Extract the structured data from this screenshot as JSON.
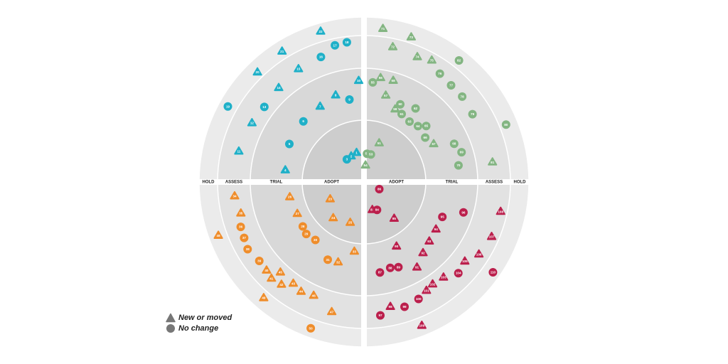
{
  "radar": {
    "ring_labels": [
      "ADOPT",
      "TRIAL",
      "ASSESS",
      "HOLD"
    ],
    "quadrant_colors": {
      "top-left": "#1fb0c8",
      "top-right": "#83b582",
      "bottom-left": "#ef8d2b",
      "bottom-right": "#bb1f4c"
    },
    "blips": [
      {
        "n": "1",
        "q": "tl",
        "r": "adopt",
        "shape": "triangle",
        "a": 76,
        "d": 0.45
      },
      {
        "n": "2",
        "q": "tl",
        "r": "adopt",
        "shape": "triangle",
        "a": 64,
        "d": 0.42
      },
      {
        "n": "3",
        "q": "tl",
        "r": "adopt",
        "shape": "circle",
        "a": 53,
        "d": 0.4
      },
      {
        "n": "4",
        "q": "tl",
        "r": "trial",
        "shape": "triangle",
        "a": 9,
        "d": 0.3
      },
      {
        "n": "5",
        "q": "tl",
        "r": "trial",
        "shape": "circle",
        "a": 27,
        "d": 0.4
      },
      {
        "n": "6",
        "q": "tl",
        "r": "trial",
        "shape": "circle",
        "a": 45,
        "d": 0.45
      },
      {
        "n": "7",
        "q": "tl",
        "r": "trial",
        "shape": "triangle",
        "a": 60,
        "d": 0.5
      },
      {
        "n": "8",
        "q": "tl",
        "r": "trial",
        "shape": "triangle",
        "a": 72,
        "d": 0.6
      },
      {
        "n": "9",
        "q": "tl",
        "r": "trial",
        "shape": "circle",
        "a": 80,
        "d": 0.4
      },
      {
        "n": "10",
        "q": "tl",
        "r": "trial",
        "shape": "triangle",
        "a": 87,
        "d": 0.85
      },
      {
        "n": "11",
        "q": "tl",
        "r": "assess",
        "shape": "triangle",
        "a": 14,
        "d": 0.45
      },
      {
        "n": "12",
        "q": "tl",
        "r": "assess",
        "shape": "triangle",
        "a": 28,
        "d": 0.35
      },
      {
        "n": "13",
        "q": "tl",
        "r": "assess",
        "shape": "circle",
        "a": 37,
        "d": 0.25
      },
      {
        "n": "14",
        "q": "tl",
        "r": "assess",
        "shape": "triangle",
        "a": 48,
        "d": 0.38
      },
      {
        "n": "15",
        "q": "tl",
        "r": "assess",
        "shape": "triangle",
        "a": 60,
        "d": 0.55
      },
      {
        "n": "16",
        "q": "tl",
        "r": "assess",
        "shape": "circle",
        "a": 71,
        "d": 0.6
      },
      {
        "n": "17",
        "q": "tl",
        "r": "assess",
        "shape": "circle",
        "a": 78,
        "d": 0.95
      },
      {
        "n": "18",
        "q": "tl",
        "r": "assess",
        "shape": "circle",
        "a": 83,
        "d": 1.0
      },
      {
        "n": "19",
        "q": "tl",
        "r": "hold",
        "shape": "circle",
        "a": 29,
        "d": 0.5
      },
      {
        "n": "20",
        "q": "tl",
        "r": "hold",
        "shape": "triangle",
        "a": 46,
        "d": 0.18
      },
      {
        "n": "21",
        "q": "tl",
        "r": "hold",
        "shape": "triangle",
        "a": 58,
        "d": 0.35
      },
      {
        "n": "22",
        "q": "tl",
        "r": "hold",
        "shape": "triangle",
        "a": 74,
        "d": 0.72
      },
      {
        "n": "23",
        "q": "bl",
        "r": "adopt",
        "shape": "triangle",
        "a": 26,
        "d": 0.6
      },
      {
        "n": "24",
        "q": "bl",
        "r": "adopt",
        "shape": "triangle",
        "a": 49,
        "d": 0.8
      },
      {
        "n": "25",
        "q": "bl",
        "r": "adopt",
        "shape": "triangle",
        "a": 71,
        "d": 0.7
      },
      {
        "n": "26",
        "q": "bl",
        "r": "trial",
        "shape": "triangle",
        "a": 11,
        "d": 0.2
      },
      {
        "n": "27",
        "q": "bl",
        "r": "trial",
        "shape": "triangle",
        "a": 25,
        "d": 0.15
      },
      {
        "n": "28",
        "q": "bl",
        "r": "trial",
        "shape": "circle",
        "a": 36,
        "d": 0.2
      },
      {
        "n": "29",
        "q": "bl",
        "r": "trial",
        "shape": "circle",
        "a": 42,
        "d": 0.25
      },
      {
        "n": "30",
        "q": "bl",
        "r": "trial",
        "shape": "circle",
        "a": 50,
        "d": 0.2
      },
      {
        "n": "31",
        "q": "bl",
        "r": "trial",
        "shape": "circle",
        "a": 65,
        "d": 0.45
      },
      {
        "n": "32",
        "q": "bl",
        "r": "trial",
        "shape": "triangle",
        "a": 72,
        "d": 0.4
      },
      {
        "n": "33",
        "q": "bl",
        "r": "trial",
        "shape": "triangle",
        "a": 82,
        "d": 0.05
      },
      {
        "n": "34",
        "q": "bl",
        "r": "assess",
        "shape": "triangle",
        "a": 6,
        "d": 0.5
      },
      {
        "n": "35",
        "q": "bl",
        "r": "assess",
        "shape": "triangle",
        "a": 14,
        "d": 0.35
      },
      {
        "n": "36",
        "q": "bl",
        "r": "assess",
        "shape": "circle",
        "a": 20,
        "d": 0.55
      },
      {
        "n": "37",
        "q": "bl",
        "r": "assess",
        "shape": "circle",
        "a": 25,
        "d": 0.6
      },
      {
        "n": "38",
        "q": "bl",
        "r": "assess",
        "shape": "circle",
        "a": 30,
        "d": 0.7
      },
      {
        "n": "39",
        "q": "bl",
        "r": "assess",
        "shape": "circle",
        "a": 37,
        "d": 0.55
      },
      {
        "n": "40",
        "q": "bl",
        "r": "assess",
        "shape": "triangle",
        "a": 42,
        "d": 0.55
      },
      {
        "n": "41",
        "q": "bl",
        "r": "assess",
        "shape": "triangle",
        "a": 46,
        "d": 0.65
      },
      {
        "n": "42",
        "q": "bl",
        "r": "assess",
        "shape": "triangle",
        "a": 51,
        "d": 0.55
      },
      {
        "n": "43",
        "q": "bl",
        "r": "assess",
        "shape": "triangle",
        "a": 55,
        "d": 0.18
      },
      {
        "n": "44",
        "q": "bl",
        "r": "assess",
        "shape": "triangle",
        "a": 60,
        "d": 0.3
      },
      {
        "n": "45",
        "q": "bl",
        "r": "assess",
        "shape": "triangle",
        "a": 47,
        "d": 0.15
      },
      {
        "n": "46",
        "q": "bl",
        "r": "assess",
        "shape": "triangle",
        "a": 66,
        "d": 0.2
      },
      {
        "n": "47",
        "q": "bl",
        "r": "assess",
        "shape": "triangle",
        "a": 76,
        "d": 0.65
      },
      {
        "n": "48",
        "q": "bl",
        "r": "hold",
        "shape": "triangle",
        "a": 20,
        "d": 0.4
      },
      {
        "n": "49",
        "q": "bl",
        "r": "hold",
        "shape": "triangle",
        "a": 49,
        "d": 0.1
      },
      {
        "n": "50",
        "q": "bl",
        "r": "hold",
        "shape": "circle",
        "a": 70,
        "d": 0.5
      },
      {
        "n": "51",
        "q": "tr",
        "r": "adopt",
        "shape": "triangle",
        "a": 69,
        "d": 0.7
      },
      {
        "n": "52",
        "q": "tr",
        "r": "adopt",
        "shape": "circle",
        "a": 84,
        "d": 0.4
      },
      {
        "n": "53",
        "q": "tr",
        "r": "adopt",
        "shape": "circle",
        "a": 76,
        "d": 0.4
      },
      {
        "n": "54",
        "q": "tr",
        "r": "adopt",
        "shape": "triangle",
        "a": 85,
        "d": 0.16
      },
      {
        "n": "55",
        "q": "tr",
        "r": "trial",
        "shape": "circle",
        "a": 85,
        "d": 0.8
      },
      {
        "n": "56",
        "q": "tr",
        "r": "trial",
        "shape": "triangle",
        "a": 81,
        "d": 0.95
      },
      {
        "n": "57",
        "q": "tr",
        "r": "trial",
        "shape": "triangle",
        "a": 76,
        "d": 0.55
      },
      {
        "n": "58",
        "q": "tr",
        "r": "trial",
        "shape": "triangle",
        "a": 74,
        "d": 0.95
      },
      {
        "n": "59",
        "q": "tr",
        "r": "trial",
        "shape": "triangle",
        "a": 67,
        "d": 0.3
      },
      {
        "n": "60",
        "q": "tr",
        "r": "trial",
        "shape": "circle",
        "a": 65,
        "d": 0.45
      },
      {
        "n": "61",
        "q": "tr",
        "r": "trial",
        "shape": "circle",
        "a": 61,
        "d": 0.25
      },
      {
        "n": "62",
        "q": "tr",
        "r": "trial",
        "shape": "circle",
        "a": 55,
        "d": 0.55
      },
      {
        "n": "63",
        "q": "tr",
        "r": "trial",
        "shape": "circle",
        "a": 53,
        "d": 0.2
      },
      {
        "n": "64",
        "q": "tr",
        "r": "trial",
        "shape": "circle",
        "a": 46,
        "d": 0.25
      },
      {
        "n": "65",
        "q": "tr",
        "r": "trial",
        "shape": "circle",
        "a": 42,
        "d": 0.4
      },
      {
        "n": "66",
        "q": "tr",
        "r": "trial",
        "shape": "circle",
        "a": 36,
        "d": 0.2
      },
      {
        "n": "67",
        "q": "tr",
        "r": "trial",
        "shape": "triangle",
        "a": 29,
        "d": 0.3
      },
      {
        "n": "68",
        "q": "tr",
        "r": "trial",
        "shape": "circle",
        "a": 23,
        "d": 0.75
      },
      {
        "n": "69",
        "q": "tr",
        "r": "trial",
        "shape": "circle",
        "a": 17,
        "d": 0.85
      },
      {
        "n": "70",
        "q": "tr",
        "r": "trial",
        "shape": "circle",
        "a": 10,
        "d": 0.7
      },
      {
        "n": "71",
        "q": "tr",
        "r": "hold",
        "shape": "triangle",
        "a": 83,
        "d": 0.4
      },
      {
        "n": "72",
        "q": "tr",
        "r": "assess",
        "shape": "triangle",
        "a": 78,
        "d": 0.9
      },
      {
        "n": "73",
        "q": "tr",
        "r": "hold",
        "shape": "triangle",
        "a": 72,
        "d": 0.1
      },
      {
        "n": "74",
        "q": "tr",
        "r": "assess",
        "shape": "triangle",
        "a": 67,
        "d": 0.8
      },
      {
        "n": "75",
        "q": "tr",
        "r": "assess",
        "shape": "triangle",
        "a": 61,
        "d": 0.95
      },
      {
        "n": "76",
        "q": "tr",
        "r": "assess",
        "shape": "circle",
        "a": 55,
        "d": 0.6
      },
      {
        "n": "77",
        "q": "tr",
        "r": "assess",
        "shape": "circle",
        "a": 48,
        "d": 0.5
      },
      {
        "n": "78",
        "q": "tr",
        "r": "assess",
        "shape": "circle",
        "a": 41,
        "d": 0.5
      },
      {
        "n": "79",
        "q": "tr",
        "r": "assess",
        "shape": "circle",
        "a": 32,
        "d": 0.4
      },
      {
        "n": "80",
        "q": "tr",
        "r": "hold",
        "shape": "circle",
        "a": 22,
        "d": 0.15
      },
      {
        "n": "81",
        "q": "tr",
        "r": "assess",
        "shape": "triangle",
        "a": 9,
        "d": 0.5
      },
      {
        "n": "82",
        "q": "tr",
        "r": "hold",
        "shape": "circle",
        "a": 52,
        "d": 0.3
      },
      {
        "n": "83",
        "q": "br",
        "r": "adopt",
        "shape": "triangle",
        "a": 73,
        "d": 0.4
      },
      {
        "n": "84",
        "q": "br",
        "r": "adopt",
        "shape": "circle",
        "a": 65,
        "d": 0.45
      },
      {
        "n": "85",
        "q": "br",
        "r": "adopt",
        "shape": "triangle",
        "a": 50,
        "d": 0.8
      },
      {
        "n": "86",
        "q": "br",
        "r": "adopt",
        "shape": "circle",
        "a": 25,
        "d": 0.15
      },
      {
        "n": "87",
        "q": "br",
        "r": "trial",
        "shape": "circle",
        "a": 80,
        "d": 0.6
      },
      {
        "n": "88",
        "q": "br",
        "r": "trial",
        "shape": "circle",
        "a": 73,
        "d": 0.55
      },
      {
        "n": "89",
        "q": "br",
        "r": "trial",
        "shape": "circle",
        "a": 68,
        "d": 0.6
      },
      {
        "n": "90",
        "q": "br",
        "r": "trial",
        "shape": "triangle",
        "a": 63,
        "d": 0.1
      },
      {
        "n": "91",
        "q": "br",
        "r": "trial",
        "shape": "triangle",
        "a": 58,
        "d": 0.8
      },
      {
        "n": "92",
        "q": "br",
        "r": "trial",
        "shape": "triangle",
        "a": 50,
        "d": 0.6
      },
      {
        "n": "93",
        "q": "br",
        "r": "trial",
        "shape": "triangle",
        "a": 42,
        "d": 0.5
      },
      {
        "n": "94",
        "q": "br",
        "r": "trial",
        "shape": "triangle",
        "a": 33,
        "d": 0.45
      },
      {
        "n": "95",
        "q": "br",
        "r": "trial",
        "shape": "circle",
        "a": 24,
        "d": 0.45
      },
      {
        "n": "96",
        "q": "br",
        "r": "trial",
        "shape": "circle",
        "a": 17,
        "d": 0.9
      },
      {
        "n": "97",
        "q": "br",
        "r": "assess",
        "shape": "circle",
        "a": 83,
        "d": 0.7
      },
      {
        "n": "98",
        "q": "br",
        "r": "assess",
        "shape": "triangle",
        "a": 78,
        "d": 0.35
      },
      {
        "n": "99",
        "q": "br",
        "r": "assess",
        "shape": "circle",
        "a": 72,
        "d": 0.55
      },
      {
        "n": "100",
        "q": "br",
        "r": "assess",
        "shape": "circle",
        "a": 65,
        "d": 0.45
      },
      {
        "n": "101",
        "q": "br",
        "r": "assess",
        "shape": "triangle",
        "a": 60,
        "d": 0.25
      },
      {
        "n": "102",
        "q": "br",
        "r": "assess",
        "shape": "triangle",
        "a": 56,
        "d": 0.15
      },
      {
        "n": "103",
        "q": "br",
        "r": "assess",
        "shape": "triangle",
        "a": 50,
        "d": 0.2
      },
      {
        "n": "104",
        "q": "br",
        "r": "assess",
        "shape": "circle",
        "a": 44,
        "d": 0.55
      },
      {
        "n": "105",
        "q": "br",
        "r": "assess",
        "shape": "triangle",
        "a": 38,
        "d": 0.4
      },
      {
        "n": "106",
        "q": "br",
        "r": "assess",
        "shape": "triangle",
        "a": 32,
        "d": 0.75
      },
      {
        "n": "107",
        "q": "br",
        "r": "assess",
        "shape": "triangle",
        "a": 23,
        "d": 0.9
      },
      {
        "n": "108",
        "q": "br",
        "r": "assess",
        "shape": "triangle",
        "a": 12,
        "d": 0.95
      },
      {
        "n": "109",
        "q": "br",
        "r": "hold",
        "shape": "triangle",
        "a": 68,
        "d": 0.3
      },
      {
        "n": "110",
        "q": "br",
        "r": "hold",
        "shape": "circle",
        "a": 35,
        "d": 0.75
      }
    ]
  },
  "legend": {
    "items": [
      {
        "shape": "triangle",
        "label": "New or moved"
      },
      {
        "shape": "circle",
        "label": "No change"
      }
    ]
  }
}
